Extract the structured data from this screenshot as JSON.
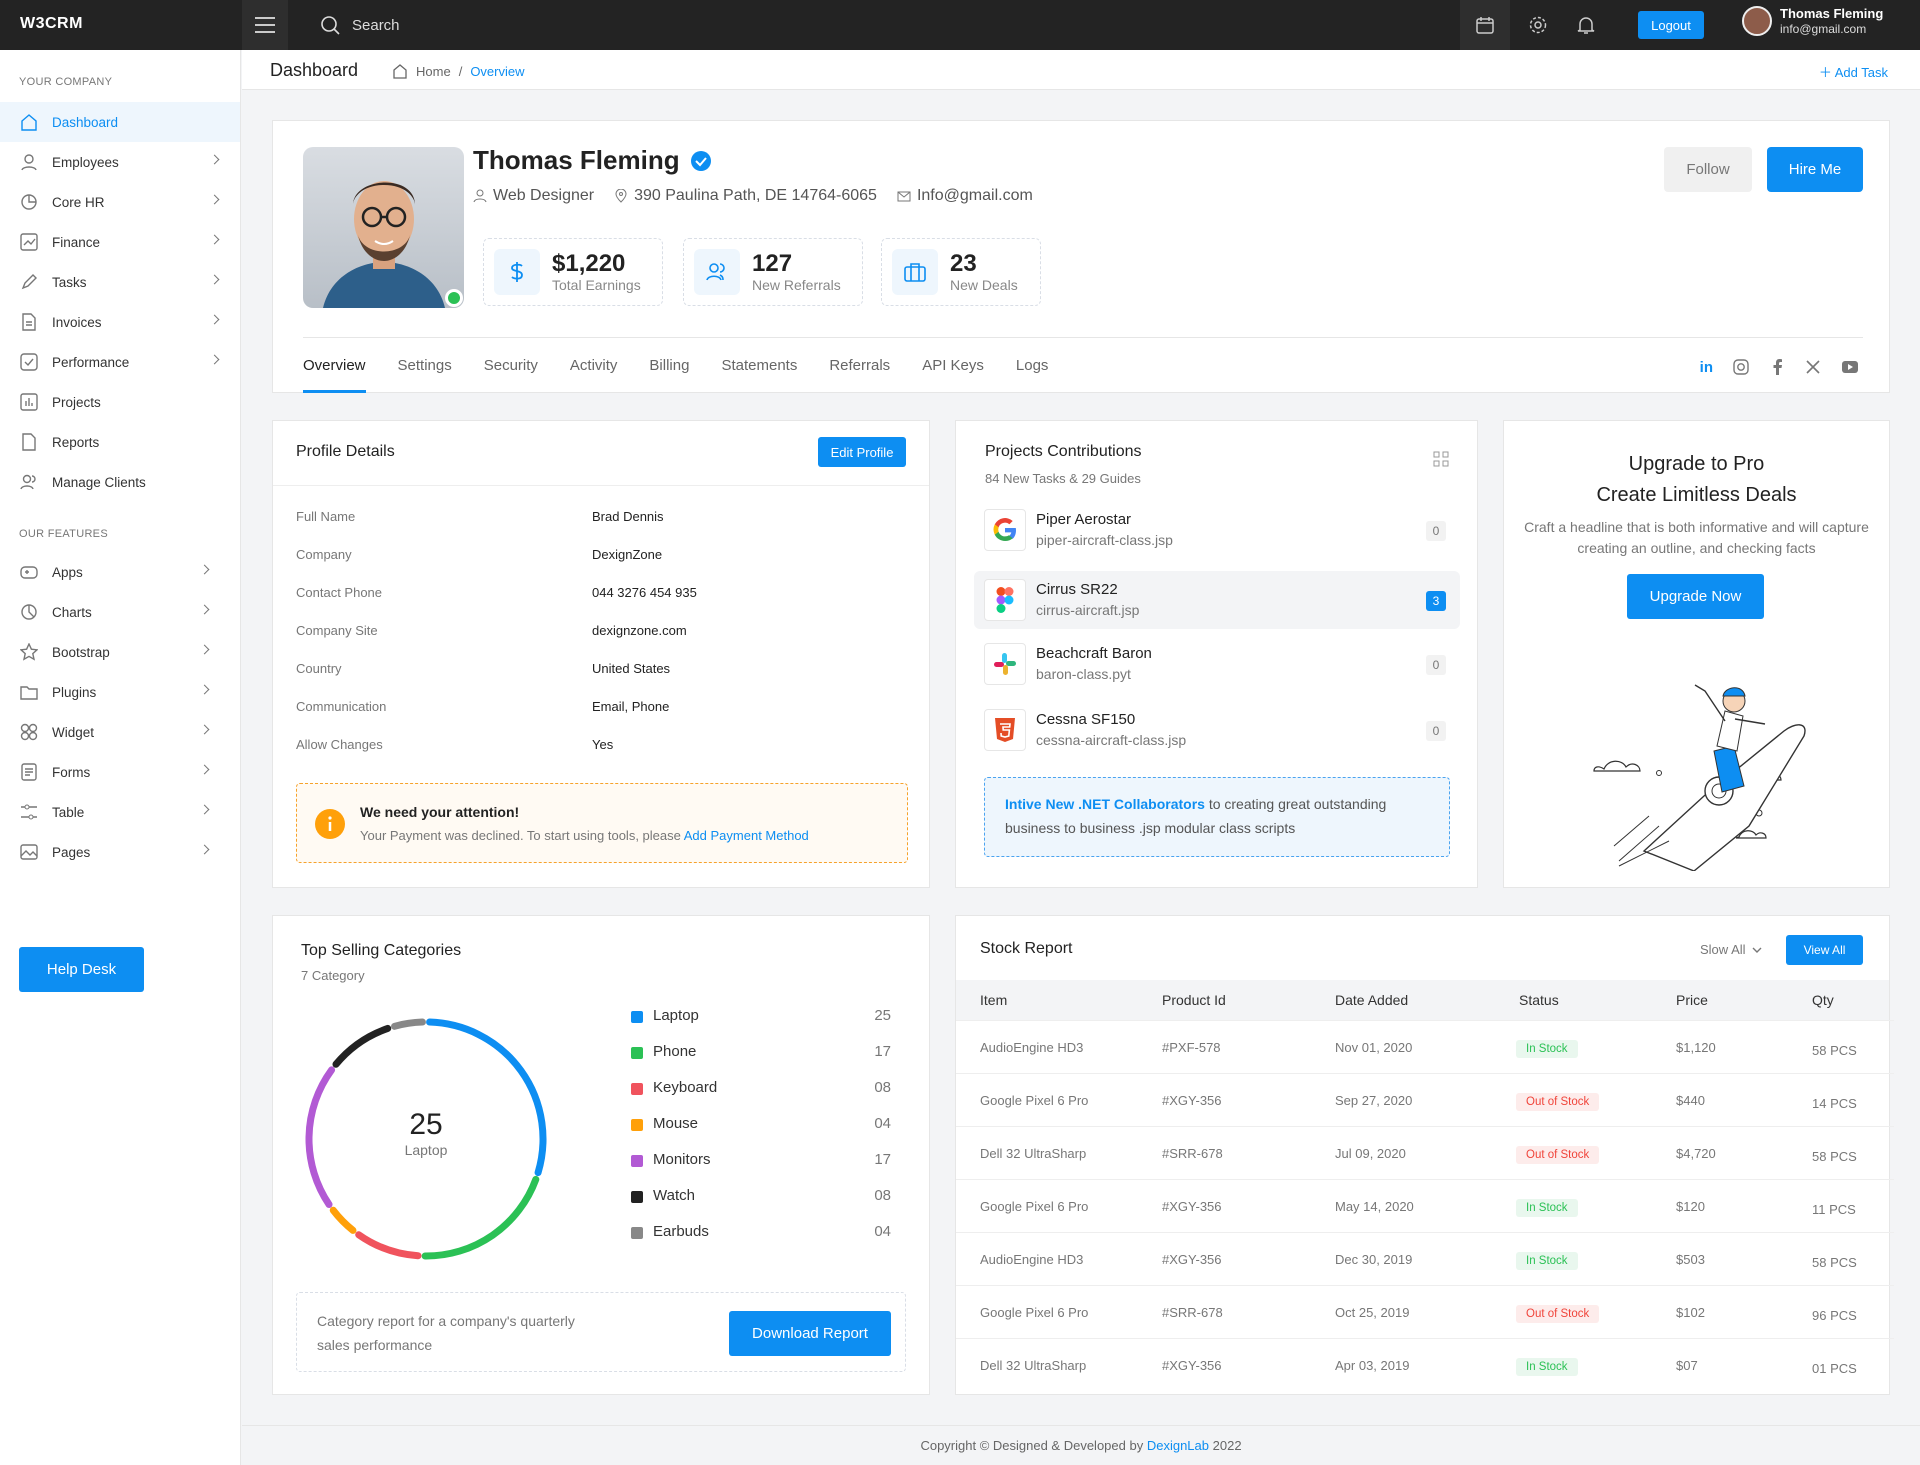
{
  "app": {
    "logo": "W3CRM"
  },
  "topbar": {
    "search_label": "Search",
    "logout_label": "Logout",
    "user_name": "Thomas Fleming",
    "user_email": "info@gmail.com"
  },
  "sidebar": {
    "section1": "YOUR COMPANY",
    "section2": "OUR FEATURES",
    "items": [
      {
        "label": "Dashboard"
      },
      {
        "label": "Employees"
      },
      {
        "label": "Core HR"
      },
      {
        "label": "Finance"
      },
      {
        "label": "Tasks"
      },
      {
        "label": "Invoices"
      },
      {
        "label": "Performance"
      },
      {
        "label": "Projects"
      },
      {
        "label": "Reports"
      },
      {
        "label": "Manage Clients"
      }
    ],
    "features": [
      {
        "label": "Apps"
      },
      {
        "label": "Charts"
      },
      {
        "label": "Bootstrap"
      },
      {
        "label": "Plugins"
      },
      {
        "label": "Widget"
      },
      {
        "label": "Forms"
      },
      {
        "label": "Table"
      },
      {
        "label": "Pages"
      }
    ],
    "help_label": "Help Desk"
  },
  "page_header": {
    "title": "Dashboard",
    "crumb_home": "Home",
    "crumb_sep": "/",
    "crumb_current": "Overview",
    "add_task": "Add Task"
  },
  "profile": {
    "name": "Thomas Fleming",
    "role": "Web Designer",
    "address": "390 Paulina Path, DE 14764-6065",
    "email": "Info@gmail.com",
    "stats": [
      {
        "value": "$1,220",
        "label": "Total Earnings"
      },
      {
        "value": "127",
        "label": "New Referrals"
      },
      {
        "value": "23",
        "label": "New Deals"
      }
    ],
    "follow_label": "Follow",
    "hire_label": "Hire Me",
    "tabs": [
      "Overview",
      "Settings",
      "Security",
      "Activity",
      "Billing",
      "Statements",
      "Referrals",
      "API Keys",
      "Logs"
    ]
  },
  "profile_details": {
    "title": "Profile Details",
    "edit_label": "Edit Profile",
    "rows": [
      {
        "key": "Full Name",
        "value": "Brad Dennis"
      },
      {
        "key": "Company",
        "value": "DexignZone"
      },
      {
        "key": "Contact Phone",
        "value": "044 3276 454 935"
      },
      {
        "key": "Company Site",
        "value": "dexignzone.com"
      },
      {
        "key": "Country",
        "value": "United States"
      },
      {
        "key": "Communication",
        "value": "Email, Phone"
      },
      {
        "key": "Allow Changes",
        "value": "Yes"
      }
    ],
    "alert_title": "We need your attention!",
    "alert_text": "Your Payment was declined. To start using tools, please",
    "alert_link": "Add Payment Method"
  },
  "projects": {
    "title": "Projects Contributions",
    "subtitle": "84 New Tasks & 29 Guides",
    "items": [
      {
        "name": "Piper Aerostar",
        "file": "piper-aircraft-class.jsp",
        "count": "0"
      },
      {
        "name": "Cirrus SR22",
        "file": "cirrus-aircraft.jsp",
        "count": "3"
      },
      {
        "name": "Beachcraft Baron",
        "file": "baron-class.pyt",
        "count": "0"
      },
      {
        "name": "Cessna SF150",
        "file": "cessna-aircraft-class.jsp",
        "count": "0"
      }
    ],
    "note_link": "Intive New .NET Collaborators",
    "note_text": " to creating great outstanding business to business .jsp modular class scripts"
  },
  "upgrade": {
    "title1": "Upgrade to Pro",
    "title2": "Create Limitless Deals",
    "text": "Craft a headline that is both informative and will capture creating an outline, and checking facts",
    "button": "Upgrade Now"
  },
  "categories": {
    "title": "Top Selling Categories",
    "subtitle": "7 Category",
    "center_value": "25",
    "center_label": "Laptop",
    "footer_text": "Category report for a company's quarterly sales performance",
    "download_label": "Download Report"
  },
  "chart_data": {
    "type": "pie",
    "categories": [
      "Laptop",
      "Phone",
      "Keyboard",
      "Mouse",
      "Monitors",
      "Watch",
      "Earbuds"
    ],
    "labels": [
      "25",
      "17",
      "08",
      "04",
      "17",
      "08",
      "04"
    ],
    "values": [
      25,
      17,
      8,
      4,
      17,
      8,
      4
    ],
    "colors": [
      "#0d8ef2",
      "#2bc155",
      "#f0535d",
      "#ffa00a",
      "#b25ad4",
      "#222222",
      "#888888"
    ]
  },
  "stock": {
    "title": "Stock Report",
    "filter_label": "Slow All",
    "view_all": "View All",
    "columns": [
      "Item",
      "Product Id",
      "Date Added",
      "Status",
      "Price",
      "Qty"
    ],
    "rows": [
      {
        "item": "AudioEngine HD3",
        "id": "#PXF-578",
        "date": "Nov 01, 2020",
        "status": "In Stock",
        "price": "$1,120",
        "qty": "58 PCS"
      },
      {
        "item": "Google Pixel 6 Pro",
        "id": "#XGY-356",
        "date": "Sep 27, 2020",
        "status": "Out of Stock",
        "price": "$440",
        "qty": "14 PCS"
      },
      {
        "item": "Dell 32 UltraSharp",
        "id": "#SRR-678",
        "date": "Jul 09, 2020",
        "status": "Out of Stock",
        "price": "$4,720",
        "qty": "58 PCS"
      },
      {
        "item": "Google Pixel 6 Pro",
        "id": "#XGY-356",
        "date": "May 14, 2020",
        "status": "In Stock",
        "price": "$120",
        "qty": "11 PCS"
      },
      {
        "item": "AudioEngine HD3",
        "id": "#XGY-356",
        "date": "Dec 30, 2019",
        "status": "In Stock",
        "price": "$503",
        "qty": "58 PCS"
      },
      {
        "item": "Google Pixel 6 Pro",
        "id": "#SRR-678",
        "date": "Oct 25, 2019",
        "status": "Out of Stock",
        "price": "$102",
        "qty": "96 PCS"
      },
      {
        "item": "Dell 32 UltraSharp",
        "id": "#XGY-356",
        "date": "Apr 03, 2019",
        "status": "In Stock",
        "price": "$07",
        "qty": "01 PCS"
      }
    ]
  },
  "footer": {
    "text": "Copyright © Designed & Developed by",
    "brand": "DexignLab",
    "year": "2022"
  }
}
